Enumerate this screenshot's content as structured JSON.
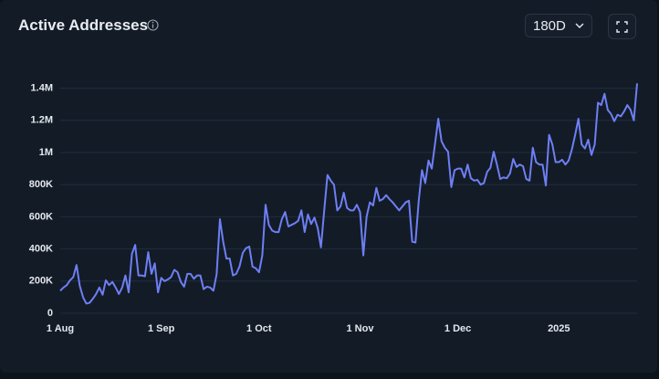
{
  "chart_data": {
    "type": "line",
    "title": "Active Addresses",
    "categories": [
      "1 Aug",
      null,
      null,
      null,
      null,
      null,
      null,
      null,
      null,
      null,
      null,
      null,
      null,
      null,
      null,
      null,
      null,
      null,
      null,
      null,
      null,
      null,
      null,
      null,
      null,
      null,
      null,
      null,
      null,
      null,
      null,
      "1 Sep",
      null,
      null,
      null,
      null,
      null,
      null,
      null,
      null,
      null,
      null,
      null,
      null,
      null,
      null,
      null,
      null,
      null,
      null,
      null,
      null,
      null,
      null,
      null,
      null,
      null,
      null,
      null,
      null,
      null,
      "1 Oct",
      null,
      null,
      null,
      null,
      null,
      null,
      null,
      null,
      null,
      null,
      null,
      null,
      null,
      null,
      null,
      null,
      null,
      null,
      null,
      null,
      null,
      null,
      null,
      null,
      null,
      null,
      null,
      null,
      null,
      null,
      "1 Nov",
      null,
      null,
      null,
      null,
      null,
      null,
      null,
      null,
      null,
      null,
      null,
      null,
      null,
      null,
      null,
      null,
      null,
      null,
      null,
      null,
      null,
      null,
      null,
      null,
      null,
      null,
      null,
      null,
      null,
      "1 Dec",
      null,
      null,
      null,
      null,
      null,
      null,
      null,
      null,
      null,
      null,
      null,
      null,
      null,
      null,
      null,
      null,
      null,
      null,
      null,
      null,
      null,
      null,
      null,
      null,
      null,
      null,
      null,
      null,
      null,
      null,
      "2025",
      null,
      null,
      null,
      null,
      null,
      null,
      null,
      null,
      null,
      null,
      null,
      null,
      null,
      null,
      null,
      null,
      null,
      null,
      null,
      null,
      null,
      null,
      null,
      null
    ],
    "values": [
      140000,
      160000,
      175000,
      205000,
      225000,
      300000,
      170000,
      100000,
      60000,
      65000,
      90000,
      120000,
      160000,
      115000,
      205000,
      175000,
      195000,
      160000,
      120000,
      160000,
      235000,
      130000,
      370000,
      425000,
      235000,
      235000,
      230000,
      380000,
      245000,
      310000,
      130000,
      220000,
      200000,
      210000,
      225000,
      270000,
      255000,
      195000,
      165000,
      245000,
      245000,
      215000,
      235000,
      235000,
      150000,
      165000,
      160000,
      140000,
      245000,
      585000,
      445000,
      340000,
      340000,
      235000,
      245000,
      290000,
      375000,
      405000,
      415000,
      290000,
      280000,
      255000,
      360000,
      675000,
      550000,
      515000,
      505000,
      505000,
      585000,
      630000,
      540000,
      550000,
      560000,
      575000,
      640000,
      505000,
      615000,
      555000,
      595000,
      530000,
      410000,
      640000,
      860000,
      825000,
      800000,
      640000,
      665000,
      750000,
      655000,
      640000,
      640000,
      675000,
      630000,
      360000,
      600000,
      690000,
      670000,
      780000,
      700000,
      710000,
      735000,
      710000,
      690000,
      665000,
      640000,
      665000,
      690000,
      700000,
      445000,
      440000,
      700000,
      890000,
      810000,
      950000,
      900000,
      1055000,
      1210000,
      1070000,
      1030000,
      1005000,
      785000,
      890000,
      900000,
      900000,
      845000,
      925000,
      840000,
      825000,
      830000,
      800000,
      810000,
      880000,
      905000,
      1005000,
      925000,
      835000,
      845000,
      840000,
      870000,
      960000,
      910000,
      925000,
      915000,
      835000,
      825000,
      1030000,
      940000,
      925000,
      925000,
      795000,
      1110000,
      1050000,
      940000,
      940000,
      955000,
      925000,
      950000,
      1020000,
      1110000,
      1210000,
      1050000,
      1025000,
      1080000,
      985000,
      1050000,
      1310000,
      1295000,
      1365000,
      1265000,
      1240000,
      1195000,
      1235000,
      1225000,
      1255000,
      1295000,
      1265000,
      1200000,
      1430000
    ],
    "color": "#6e7ff5",
    "ylim": [
      0,
      1500000
    ],
    "yticks": [
      0,
      {
        "value": 200000,
        "label": "200K"
      },
      {
        "value": 400000,
        "label": "400K"
      },
      {
        "value": 600000,
        "label": "600K"
      },
      {
        "value": 800000,
        "label": "800K"
      },
      {
        "value": 1000000,
        "label": "1M"
      },
      {
        "value": 1200000,
        "label": "1.2M"
      },
      {
        "value": 1400000,
        "label": "1.4M"
      }
    ],
    "grid": true
  },
  "controls": {
    "range": "180D"
  }
}
